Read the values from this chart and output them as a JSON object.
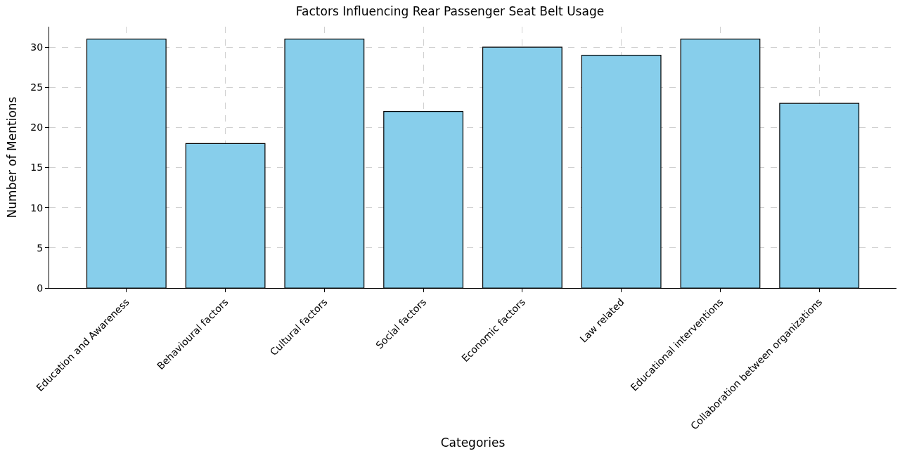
{
  "chart_data": {
    "type": "bar",
    "title": "Factors Influencing Rear Passenger Seat Belt Usage",
    "xlabel": "Categories",
    "ylabel": "Number of Mentions",
    "categories": [
      "Education and Awareness",
      "Behavioural factors",
      "Cultural factors",
      "Social factors",
      "Economic factors",
      "Law related",
      "Educational interventions",
      "Collaboration between organizations"
    ],
    "values": [
      31,
      18,
      31,
      22,
      30,
      29,
      31,
      23
    ],
    "color": "#87ceeb",
    "ylim": [
      0,
      32.55
    ],
    "yticks": [
      0,
      5,
      10,
      15,
      20,
      25,
      30
    ],
    "grid": true
  }
}
